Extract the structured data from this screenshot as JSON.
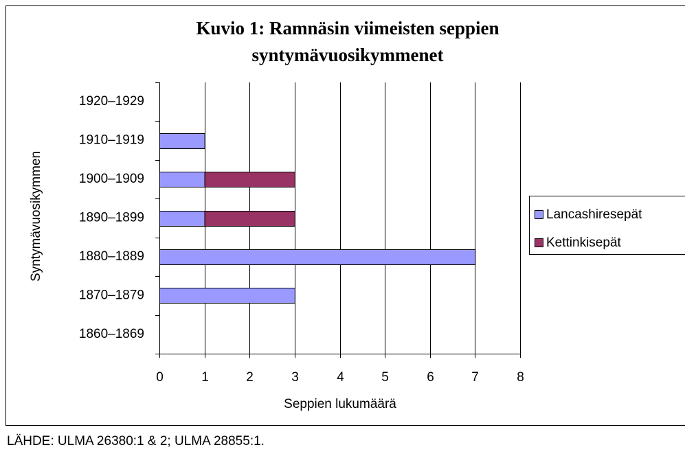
{
  "chart_data": {
    "type": "stacked_barh",
    "title": [
      "Kuvio 1: Ramnäsin viimeisten seppien",
      "syntymävuosikymmenet"
    ],
    "xlabel": "Seppien lukumäärä",
    "ylabel": "Syntymävuosikymmen",
    "categories": [
      "1860–1869",
      "1870–1879",
      "1880–1889",
      "1890–1899",
      "1900–1909",
      "1910–1919",
      "1920–1929"
    ],
    "series": [
      {
        "name": "Lancashiresepät",
        "color": "#9999ff",
        "values": [
          0,
          3,
          7,
          1,
          1,
          1,
          0
        ]
      },
      {
        "name": "Kettinkisepät",
        "color": "#993366",
        "values": [
          0,
          0,
          0,
          2,
          2,
          0,
          0
        ]
      }
    ],
    "xlim": [
      0,
      8
    ],
    "xticks": [
      0,
      1,
      2,
      3,
      4,
      5,
      6,
      7,
      8
    ],
    "grid": true,
    "legend": "right",
    "source": "LÄHDE: ULMA 26380:1 & 2; ULMA 28855:1."
  }
}
